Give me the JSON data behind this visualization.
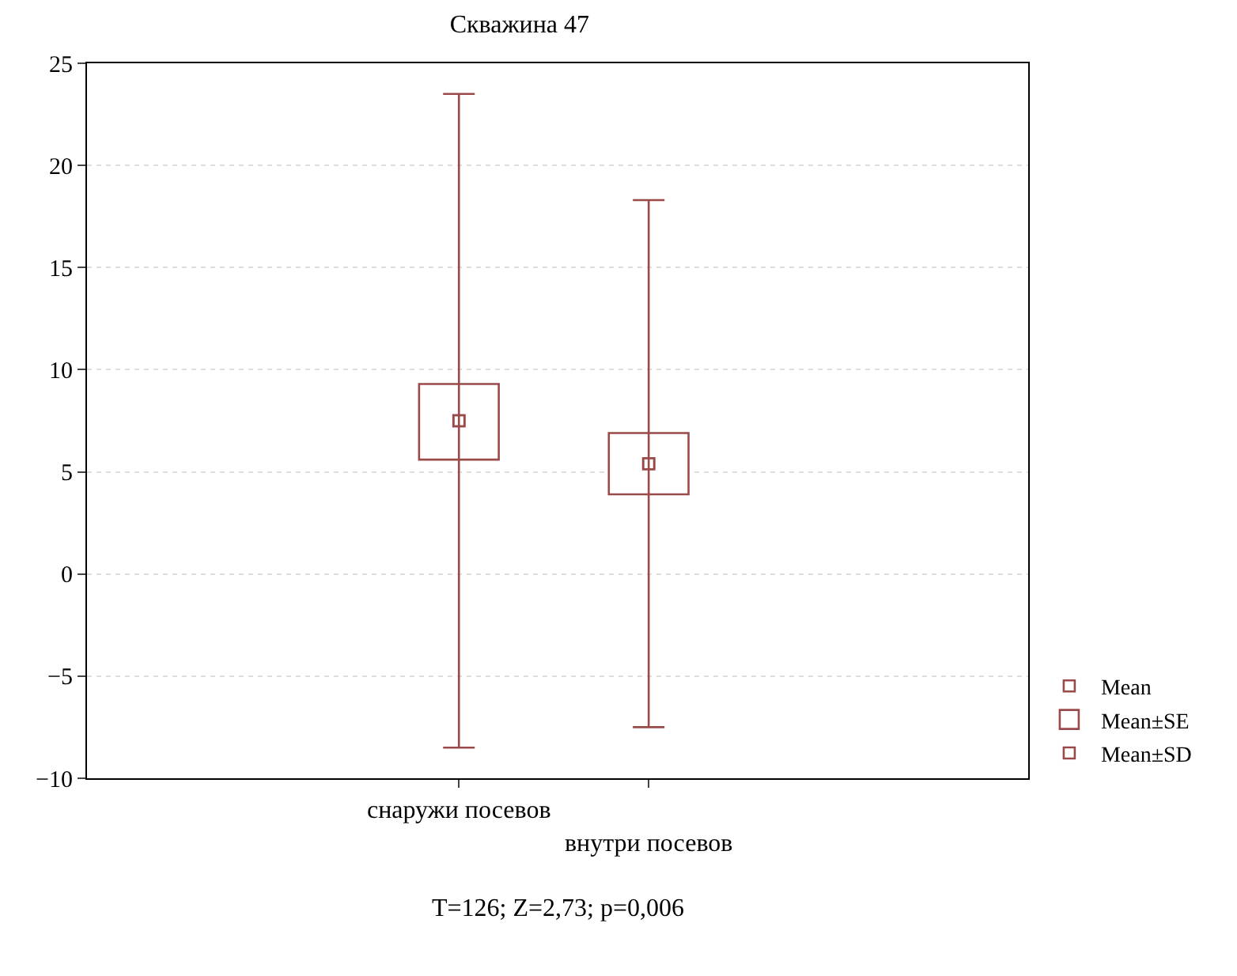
{
  "chart_data": {
    "type": "box",
    "title": "Скважина 47",
    "categories": [
      "снаружи посевов",
      "внутри посевов"
    ],
    "series": [
      {
        "name": "Mean",
        "type": "scatter",
        "color": "#9b4a4a",
        "values": [
          7.5,
          5.4
        ]
      },
      {
        "name": "Mean±SE",
        "type": "bar",
        "color": "#9b4a4a",
        "base": [
          5.6,
          3.9
        ],
        "values": [
          3.7,
          3.0
        ]
      },
      {
        "name": "Mean±SD",
        "type": "scatter",
        "marker": "square",
        "color": "#9b4a4a",
        "values": [
          7.5,
          5.4
        ],
        "errors": [
          [
            -8.5,
            23.5
          ],
          [
            -7.5,
            18.3
          ]
        ]
      }
    ],
    "ylim": [
      -10,
      25
    ],
    "yticks": [
      -10,
      -5,
      0,
      5,
      10,
      15,
      20,
      25
    ],
    "grid": "y",
    "legend": "bottom right",
    "marker": "square",
    "annotations": [
      "T=126; Z=2,73; p=0,006"
    ]
  }
}
